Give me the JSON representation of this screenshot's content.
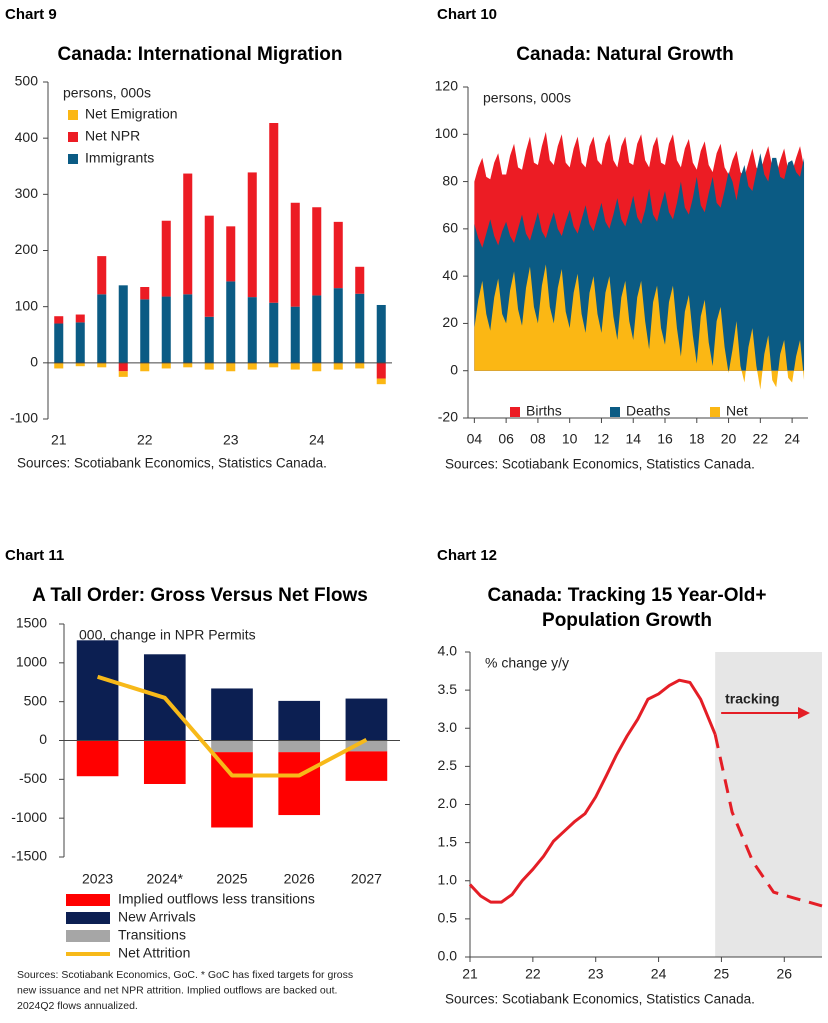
{
  "chart_data": [
    {
      "label": "Chart 9",
      "type": "bar",
      "title": "Canada: International Migration",
      "unit": "persons, 000s",
      "categories": [
        "21",
        null,
        null,
        null,
        "22",
        null,
        null,
        null,
        "23",
        null,
        null,
        null,
        "24",
        null,
        null,
        null
      ],
      "series": [
        {
          "name": "Net Emigration",
          "color": "#fbb714",
          "values": [
            -10,
            -6,
            -8,
            -10,
            -15,
            -10,
            -8,
            -12,
            -15,
            -12,
            -8,
            -12,
            -15,
            -12,
            -10,
            -10
          ]
        },
        {
          "name": "Net NPR",
          "color": "#ec1c24",
          "values": [
            13,
            14,
            68,
            -15,
            22,
            135,
            215,
            180,
            98,
            222,
            320,
            185,
            157,
            118,
            48,
            -28
          ]
        },
        {
          "name": "Immigrants",
          "color": "#0b5b84",
          "values": [
            70,
            72,
            122,
            138,
            113,
            118,
            122,
            82,
            145,
            117,
            107,
            100,
            120,
            133,
            123,
            103
          ]
        }
      ],
      "ylim": [
        -100,
        500
      ],
      "yticks": [
        -100,
        0,
        100,
        200,
        300,
        400,
        500
      ],
      "grid": false,
      "legend": "upper left",
      "source": "Sources: Scotiabank Economics, Statistics Canada."
    },
    {
      "label": "Chart 10",
      "type": "area",
      "title": "Canada: Natural Growth",
      "unit": "persons, 000s",
      "x": [
        2004,
        2004.25,
        2004.5,
        2004.75,
        2005,
        2005.25,
        2005.5,
        2005.75,
        2006,
        2006.25,
        2006.5,
        2006.75,
        2007,
        2007.25,
        2007.5,
        2007.75,
        2008,
        2008.25,
        2008.5,
        2008.75,
        2009,
        2009.25,
        2009.5,
        2009.75,
        2010,
        2010.25,
        2010.5,
        2010.75,
        2011,
        2011.25,
        2011.5,
        2011.75,
        2012,
        2012.25,
        2012.5,
        2012.75,
        2013,
        2013.25,
        2013.5,
        2013.75,
        2014,
        2014.25,
        2014.5,
        2014.75,
        2015,
        2015.25,
        2015.5,
        2015.75,
        2016,
        2016.25,
        2016.5,
        2016.75,
        2017,
        2017.25,
        2017.5,
        2017.75,
        2018,
        2018.25,
        2018.5,
        2018.75,
        2019,
        2019.25,
        2019.5,
        2019.75,
        2020,
        2020.25,
        2020.5,
        2020.75,
        2021,
        2021.25,
        2021.5,
        2021.75,
        2022,
        2022.25,
        2022.5,
        2022.75,
        2023,
        2023.25,
        2023.5,
        2023.75,
        2024,
        2024.25,
        2024.5,
        2024.75
      ],
      "series": [
        {
          "name": "Births",
          "color": "#ec1c24",
          "values": [
            80,
            86,
            90,
            82,
            81,
            88,
            92,
            83,
            83,
            91,
            96,
            86,
            85,
            93,
            99,
            88,
            87,
            95,
            101,
            89,
            87,
            95,
            100,
            88,
            86,
            94,
            99,
            88,
            86,
            95,
            99,
            89,
            87,
            96,
            100,
            89,
            86,
            95,
            99,
            88,
            87,
            96,
            100,
            89,
            86,
            95,
            99,
            88,
            87,
            96,
            100,
            89,
            86,
            94,
            98,
            88,
            85,
            93,
            97,
            87,
            84,
            92,
            96,
            86,
            83,
            89,
            93,
            84,
            82,
            88,
            94,
            86,
            84,
            90,
            95,
            86,
            83,
            89,
            94,
            85,
            84,
            90,
            95,
            86
          ]
        },
        {
          "name": "Deaths",
          "color": "#0b5b84",
          "values": [
            62,
            56,
            52,
            58,
            64,
            57,
            53,
            59,
            63,
            57,
            54,
            60,
            66,
            58,
            55,
            61,
            67,
            59,
            56,
            62,
            67,
            60,
            57,
            63,
            68,
            61,
            58,
            64,
            70,
            62,
            59,
            65,
            71,
            63,
            60,
            66,
            73,
            64,
            61,
            67,
            74,
            65,
            62,
            68,
            77,
            66,
            63,
            70,
            76,
            67,
            64,
            71,
            80,
            69,
            66,
            73,
            82,
            70,
            67,
            75,
            82,
            71,
            69,
            76,
            84,
            80,
            72,
            82,
            87,
            78,
            76,
            84,
            92,
            83,
            80,
            90,
            90,
            82,
            81,
            88,
            89,
            84,
            82,
            90
          ]
        },
        {
          "name": "Net",
          "color": "#fbb714",
          "values": [
            18,
            30,
            38,
            24,
            17,
            31,
            39,
            24,
            20,
            34,
            42,
            26,
            19,
            35,
            44,
            27,
            20,
            36,
            45,
            27,
            20,
            35,
            43,
            25,
            18,
            33,
            41,
            24,
            16,
            33,
            40,
            24,
            16,
            33,
            40,
            23,
            13,
            31,
            38,
            21,
            13,
            31,
            38,
            21,
            9,
            29,
            36,
            18,
            11,
            29,
            36,
            18,
            6,
            25,
            32,
            15,
            3,
            23,
            30,
            12,
            2,
            21,
            27,
            10,
            -1,
            9,
            21,
            2,
            -5,
            10,
            18,
            2,
            -8,
            7,
            15,
            -4,
            -7,
            7,
            13,
            -3,
            -5,
            6,
            13,
            -4
          ]
        }
      ],
      "xlim": [
        2003.6,
        2025
      ],
      "xticks": [
        {
          "value": 2004,
          "label": "04"
        },
        {
          "value": 2006,
          "label": "06"
        },
        {
          "value": 2008,
          "label": "08"
        },
        {
          "value": 2010,
          "label": "10"
        },
        {
          "value": 2012,
          "label": "12"
        },
        {
          "value": 2014,
          "label": "14"
        },
        {
          "value": 2016,
          "label": "16"
        },
        {
          "value": 2018,
          "label": "18"
        },
        {
          "value": 2020,
          "label": "20"
        },
        {
          "value": 2022,
          "label": "22"
        },
        {
          "value": 2024,
          "label": "24"
        }
      ],
      "ylim": [
        -20,
        120
      ],
      "yticks": [
        -20,
        0,
        20,
        40,
        60,
        80,
        100,
        120
      ],
      "grid": false,
      "legend": "lower center",
      "source": "Sources: Scotiabank Economics, Statistics Canada."
    },
    {
      "label": "Chart 11",
      "type": "bar",
      "title": "A Tall Order: Gross Versus Net Flows",
      "unit": "000, change in NPR Permits",
      "categories": [
        "2023",
        "2024*",
        "2025",
        "2026",
        "2027"
      ],
      "series": [
        {
          "name": "Implied outflows less transitions",
          "color": "#ff0000",
          "values": [
            -460,
            -560,
            -970,
            -810,
            -380
          ]
        },
        {
          "name": "New Arrivals",
          "color": "#0c1f52",
          "values": [
            1290,
            1110,
            670,
            510,
            540
          ]
        },
        {
          "name": "Transitions",
          "color": "#a6a6a6",
          "values": [
            0,
            0,
            -150,
            -150,
            -140
          ]
        },
        {
          "name": "Net Attrition",
          "color": "#f7b919",
          "type": "line",
          "values": [
            820,
            550,
            -450,
            -450,
            10
          ]
        }
      ],
      "ylim": [
        -1500,
        1500
      ],
      "yticks": [
        -1500,
        -1000,
        -500,
        0,
        500,
        1000,
        1500
      ],
      "grid": false,
      "legend": "below",
      "source": [
        "Sources: Scotiabank Economics, GoC. * GoC has fixed targets for gross",
        "new issuance and net NPR attrition. Implied outflows are backed out.",
        "2024Q2 flows annualized."
      ]
    },
    {
      "label": "Chart 12",
      "type": "line",
      "title": [
        "Canada:  Tracking 15 Year-Old+",
        "Population Growth"
      ],
      "unit": "% change y/y",
      "x": [
        2021,
        2021.17,
        2021.33,
        2021.5,
        2021.67,
        2021.83,
        2022,
        2022.17,
        2022.33,
        2022.5,
        2022.67,
        2022.83,
        2023,
        2023.17,
        2023.33,
        2023.5,
        2023.67,
        2023.83,
        2024,
        2024.17,
        2024.33,
        2024.5,
        2024.67,
        2024.9,
        2025.17,
        2025.5,
        2025.83,
        2026.17,
        2026.6
      ],
      "series": [
        {
          "color": "#e41e26",
          "values": [
            0.95,
            0.8,
            0.72,
            0.72,
            0.82,
            1.0,
            1.15,
            1.32,
            1.52,
            1.65,
            1.78,
            1.88,
            2.1,
            2.38,
            2.65,
            2.9,
            3.12,
            3.38,
            3.45,
            3.56,
            3.63,
            3.6,
            3.38,
            2.92,
            null,
            null,
            null,
            null,
            null
          ]
        },
        {
          "color": "#e41e26",
          "dashed": true,
          "values": [
            null,
            null,
            null,
            null,
            null,
            null,
            null,
            null,
            null,
            null,
            null,
            null,
            null,
            null,
            null,
            null,
            null,
            null,
            null,
            null,
            null,
            null,
            null,
            2.92,
            1.9,
            1.25,
            0.85,
            0.77,
            0.67
          ]
        }
      ],
      "shaded_region": [
        2024.9,
        2026.6
      ],
      "annotations": [
        {
          "text": "tracking"
        }
      ],
      "xlim": [
        2021,
        2026.6
      ],
      "xticks": [
        {
          "value": 2021,
          "label": "21"
        },
        {
          "value": 2022,
          "label": "22"
        },
        {
          "value": 2023,
          "label": "23"
        },
        {
          "value": 2024,
          "label": "24"
        },
        {
          "value": 2025,
          "label": "25"
        },
        {
          "value": 2026,
          "label": "26"
        }
      ],
      "ylim": [
        0,
        4
      ],
      "yticks": [
        {
          "value": 0,
          "label": "0.0"
        },
        0.5,
        {
          "value": 1,
          "label": "1.0"
        },
        1.5,
        {
          "value": 2,
          "label": "2.0"
        },
        2.5,
        {
          "value": 3,
          "label": "3.0"
        },
        3.5,
        {
          "value": 4,
          "label": "4.0"
        }
      ],
      "grid": false,
      "source": "Sources: Scotiabank Economics, Statistics Canada."
    }
  ]
}
